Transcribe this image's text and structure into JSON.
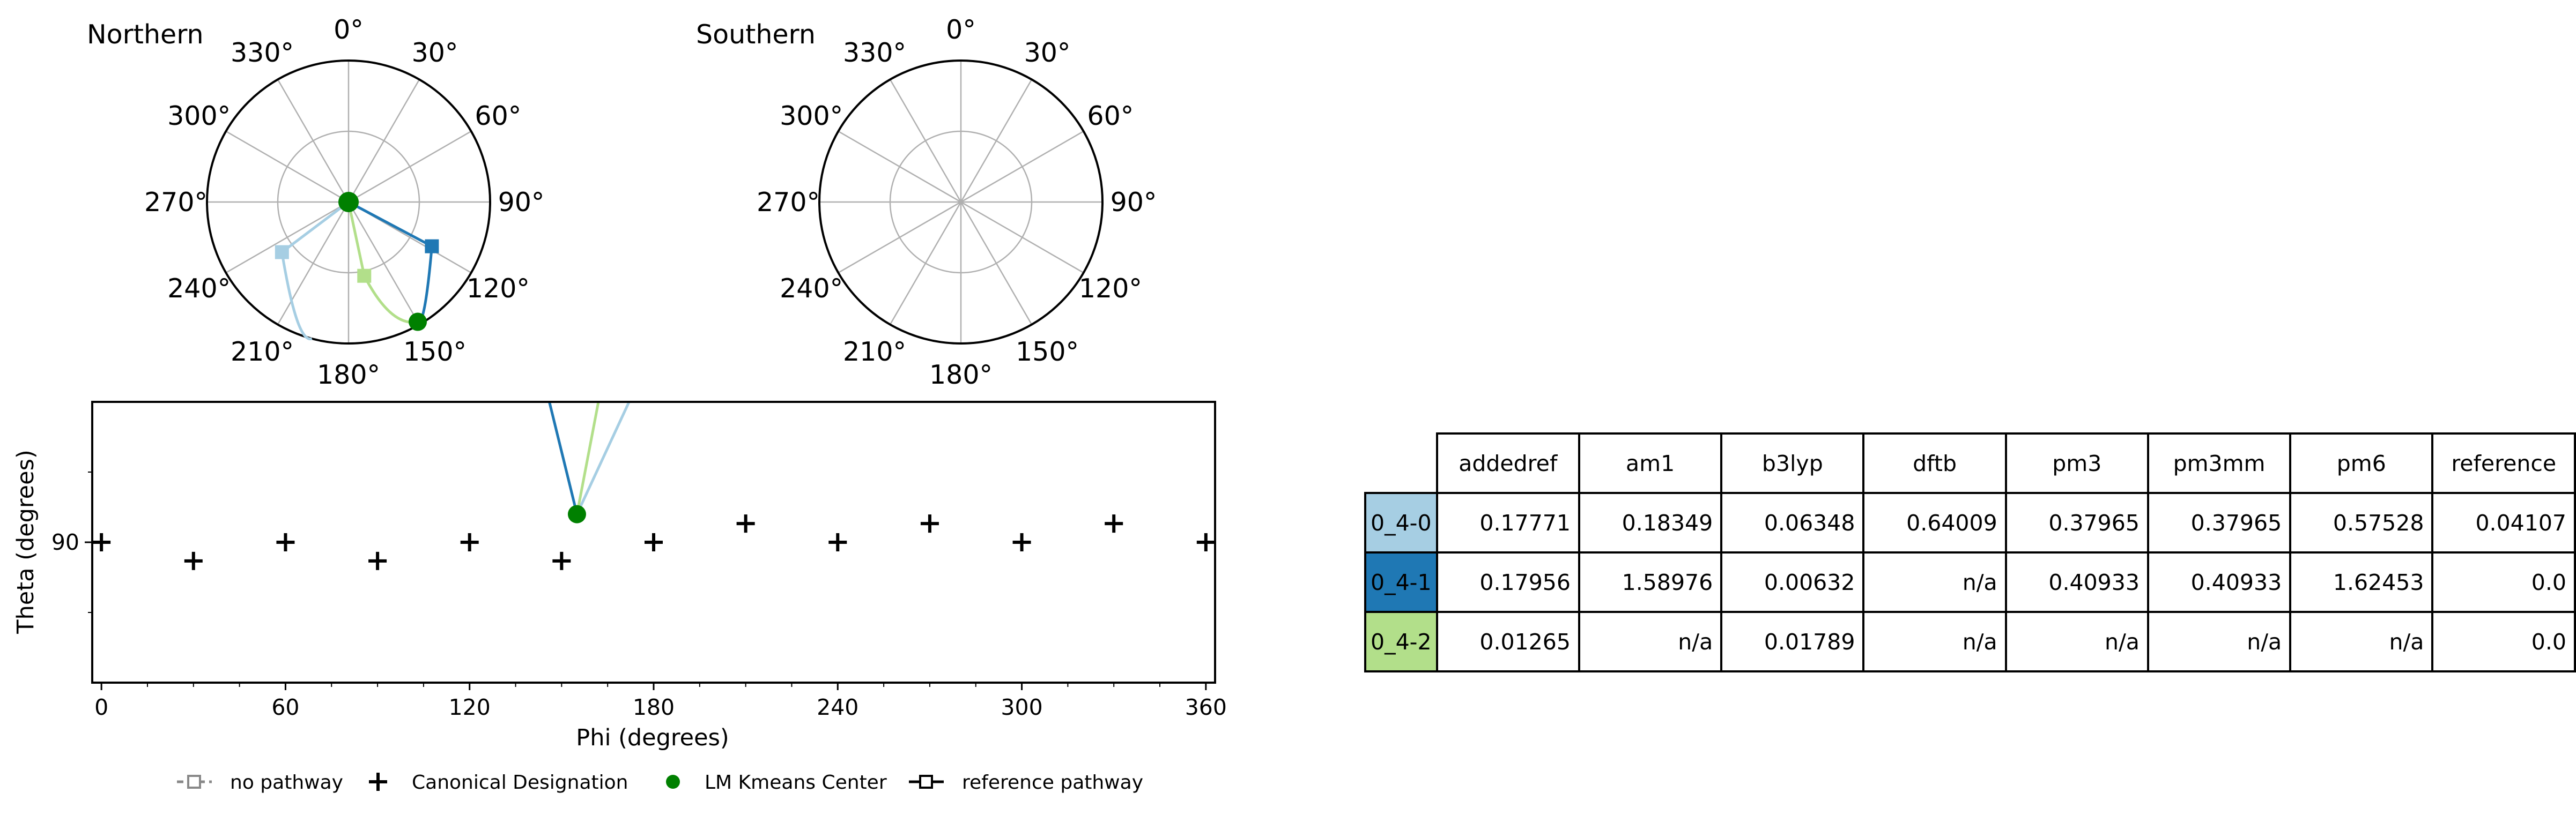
{
  "polar_plots": [
    {
      "title": "Northern"
    },
    {
      "title": "Southern"
    }
  ],
  "chart_data": [
    {
      "type": "scatter",
      "polar": "northern",
      "title": "Northern",
      "angle_ticks": [
        "0°",
        "30°",
        "60°",
        "90°",
        "120°",
        "150°",
        "180°",
        "210°",
        "240°",
        "270°",
        "300°",
        "330°"
      ],
      "center": {
        "label": "LM Kmeans Center",
        "theta": 0,
        "phi": 0,
        "color": "#008000"
      },
      "series": [
        {
          "name": "0_4-0",
          "color": "#a6cee3",
          "marker_theta": 53,
          "marker_phi": 233,
          "end_theta": 90,
          "end_phi": 195
        },
        {
          "name": "0_4-1",
          "color": "#1f78b4",
          "marker_theta": 60,
          "marker_phi": 118,
          "end_theta": 88,
          "end_phi": 150
        },
        {
          "name": "0_4-2",
          "color": "#b2df8a",
          "marker_theta": 48,
          "marker_phi": 168,
          "end_theta": 88,
          "end_phi": 150
        }
      ],
      "points": [
        {
          "label": "LM Kmeans Center",
          "theta": 88,
          "phi": 150,
          "color": "#008000"
        }
      ]
    },
    {
      "type": "scatter",
      "polar": "southern",
      "title": "Southern",
      "angle_ticks": [
        "0°",
        "30°",
        "60°",
        "90°",
        "120°",
        "150°",
        "180°",
        "210°",
        "240°",
        "270°",
        "300°",
        "330°"
      ]
    },
    {
      "type": "scatter",
      "xlabel": "Phi (degrees)",
      "ylabel": "Theta (degrees)",
      "xlim": [
        -3,
        363
      ],
      "ylim": [
        60,
        120
      ],
      "xticks": [
        0,
        60,
        120,
        180,
        240,
        300,
        360
      ],
      "yticks": [
        90
      ],
      "canonical": [
        {
          "phi": 0,
          "theta": 90
        },
        {
          "phi": 30,
          "theta": 86
        },
        {
          "phi": 60,
          "theta": 90
        },
        {
          "phi": 90,
          "theta": 86
        },
        {
          "phi": 120,
          "theta": 90
        },
        {
          "phi": 150,
          "theta": 86
        },
        {
          "phi": 180,
          "theta": 90
        },
        {
          "phi": 210,
          "theta": 94
        },
        {
          "phi": 240,
          "theta": 90
        },
        {
          "phi": 270,
          "theta": 94
        },
        {
          "phi": 300,
          "theta": 90
        },
        {
          "phi": 330,
          "theta": 94
        },
        {
          "phi": 360,
          "theta": 90
        }
      ],
      "centers": [
        {
          "phi": 155,
          "theta": 96
        }
      ],
      "paths": [
        {
          "name": "0_4-0",
          "color": "#a6cee3",
          "points": [
            [
              155,
              96
            ],
            [
              172,
              120
            ]
          ]
        },
        {
          "name": "0_4-1",
          "color": "#1f78b4",
          "points": [
            [
              155,
              96
            ],
            [
              146,
              120
            ]
          ]
        },
        {
          "name": "0_4-2",
          "color": "#b2df8a",
          "points": [
            [
              155,
              96
            ],
            [
              162,
              120
            ]
          ]
        }
      ]
    }
  ],
  "legend": [
    {
      "label": "no pathway",
      "icon": "dashed-open-square"
    },
    {
      "label": "Canonical Designation",
      "icon": "plus-marker"
    },
    {
      "label": "LM Kmeans Center",
      "icon": "green-dot"
    },
    {
      "label": "reference pathway",
      "icon": "solid-open-square"
    }
  ],
  "table": {
    "columns": [
      "addedref",
      "am1",
      "b3lyp",
      "dftb",
      "pm3",
      "pm3mm",
      "pm6",
      "reference"
    ],
    "rows": [
      {
        "label": "0_4-0",
        "color": "#a6cee3",
        "values": [
          "0.17771",
          "0.18349",
          "0.06348",
          "0.64009",
          "0.37965",
          "0.37965",
          "0.57528",
          "0.04107"
        ]
      },
      {
        "label": "0_4-1",
        "color": "#1f78b4",
        "values": [
          "0.17956",
          "1.58976",
          "0.00632",
          "n/a",
          "0.40933",
          "0.40933",
          "1.62453",
          "0.0"
        ]
      },
      {
        "label": "0_4-2",
        "color": "#b2df8a",
        "values": [
          "0.01265",
          "n/a",
          "0.01789",
          "n/a",
          "n/a",
          "n/a",
          "n/a",
          "0.0"
        ]
      }
    ]
  }
}
